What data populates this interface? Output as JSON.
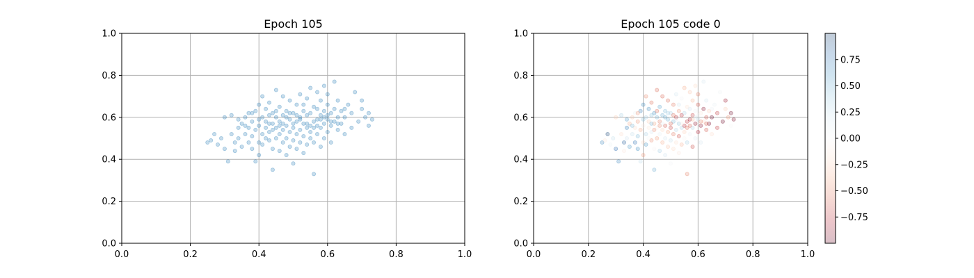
{
  "chart_data": [
    {
      "type": "scatter",
      "title": "Epoch 105",
      "xlim": [
        0.0,
        1.0
      ],
      "ylim": [
        0.0,
        1.0
      ],
      "x_ticks": [
        "0.0",
        "0.2",
        "0.4",
        "0.6",
        "0.8",
        "1.0"
      ],
      "y_ticks": [
        "0.0",
        "0.2",
        "0.4",
        "0.6",
        "0.8",
        "1.0"
      ],
      "grid": true,
      "point_color": "#1f77b4",
      "point_alpha": 0.25,
      "points": [
        [
          0.25,
          0.48
        ],
        [
          0.26,
          0.49
        ],
        [
          0.27,
          0.52
        ],
        [
          0.28,
          0.47
        ],
        [
          0.29,
          0.5
        ],
        [
          0.3,
          0.45
        ],
        [
          0.3,
          0.6
        ],
        [
          0.31,
          0.39
        ],
        [
          0.32,
          0.61
        ],
        [
          0.32,
          0.52
        ],
        [
          0.33,
          0.48
        ],
        [
          0.33,
          0.44
        ],
        [
          0.34,
          0.5
        ],
        [
          0.34,
          0.55
        ],
        [
          0.35,
          0.57
        ],
        [
          0.35,
          0.46
        ],
        [
          0.36,
          0.52
        ],
        [
          0.36,
          0.6
        ],
        [
          0.37,
          0.48
        ],
        [
          0.37,
          0.55
        ],
        [
          0.37,
          0.62
        ],
        [
          0.38,
          0.45
        ],
        [
          0.38,
          0.58
        ],
        [
          0.38,
          0.51
        ],
        [
          0.39,
          0.39
        ],
        [
          0.39,
          0.54
        ],
        [
          0.39,
          0.63
        ],
        [
          0.4,
          0.48
        ],
        [
          0.4,
          0.56
        ],
        [
          0.4,
          0.66
        ],
        [
          0.4,
          0.42
        ],
        [
          0.41,
          0.52
        ],
        [
          0.41,
          0.6
        ],
        [
          0.41,
          0.7
        ],
        [
          0.41,
          0.47
        ],
        [
          0.42,
          0.55
        ],
        [
          0.42,
          0.58
        ],
        [
          0.42,
          0.64
        ],
        [
          0.43,
          0.49
        ],
        [
          0.43,
          0.53
        ],
        [
          0.43,
          0.61
        ],
        [
          0.43,
          0.67
        ],
        [
          0.44,
          0.35
        ],
        [
          0.44,
          0.45
        ],
        [
          0.44,
          0.57
        ],
        [
          0.44,
          0.62
        ],
        [
          0.45,
          0.5
        ],
        [
          0.45,
          0.55
        ],
        [
          0.45,
          0.6
        ],
        [
          0.45,
          0.73
        ],
        [
          0.46,
          0.44
        ],
        [
          0.46,
          0.52
        ],
        [
          0.46,
          0.58
        ],
        [
          0.46,
          0.65
        ],
        [
          0.47,
          0.48
        ],
        [
          0.47,
          0.54
        ],
        [
          0.47,
          0.61
        ],
        [
          0.47,
          0.7
        ],
        [
          0.48,
          0.42
        ],
        [
          0.48,
          0.5
        ],
        [
          0.48,
          0.56
        ],
        [
          0.48,
          0.63
        ],
        [
          0.49,
          0.46
        ],
        [
          0.49,
          0.53
        ],
        [
          0.49,
          0.59
        ],
        [
          0.49,
          0.68
        ],
        [
          0.5,
          0.38
        ],
        [
          0.5,
          0.49
        ],
        [
          0.5,
          0.55
        ],
        [
          0.5,
          0.62
        ],
        [
          0.51,
          0.45
        ],
        [
          0.51,
          0.52
        ],
        [
          0.51,
          0.58
        ],
        [
          0.51,
          0.66
        ],
        [
          0.52,
          0.48
        ],
        [
          0.52,
          0.54
        ],
        [
          0.52,
          0.6
        ],
        [
          0.52,
          0.71
        ],
        [
          0.53,
          0.43
        ],
        [
          0.53,
          0.51
        ],
        [
          0.53,
          0.57
        ],
        [
          0.53,
          0.63
        ],
        [
          0.54,
          0.47
        ],
        [
          0.54,
          0.55
        ],
        [
          0.54,
          0.61
        ],
        [
          0.54,
          0.69
        ],
        [
          0.55,
          0.5
        ],
        [
          0.55,
          0.56
        ],
        [
          0.55,
          0.62
        ],
        [
          0.55,
          0.74
        ],
        [
          0.56,
          0.33
        ],
        [
          0.56,
          0.48
        ],
        [
          0.56,
          0.58
        ],
        [
          0.56,
          0.65
        ],
        [
          0.57,
          0.52
        ],
        [
          0.57,
          0.59
        ],
        [
          0.57,
          0.64
        ],
        [
          0.57,
          0.72
        ],
        [
          0.58,
          0.46
        ],
        [
          0.58,
          0.55
        ],
        [
          0.58,
          0.61
        ],
        [
          0.58,
          0.68
        ],
        [
          0.59,
          0.5
        ],
        [
          0.59,
          0.57
        ],
        [
          0.59,
          0.63
        ],
        [
          0.59,
          0.75
        ],
        [
          0.6,
          0.53
        ],
        [
          0.6,
          0.59
        ],
        [
          0.6,
          0.66
        ],
        [
          0.6,
          0.71
        ],
        [
          0.61,
          0.48
        ],
        [
          0.61,
          0.56
        ],
        [
          0.61,
          0.62
        ],
        [
          0.62,
          0.58
        ],
        [
          0.62,
          0.64
        ],
        [
          0.62,
          0.77
        ],
        [
          0.63,
          0.54
        ],
        [
          0.63,
          0.6
        ],
        [
          0.63,
          0.68
        ],
        [
          0.64,
          0.57
        ],
        [
          0.64,
          0.63
        ],
        [
          0.65,
          0.52
        ],
        [
          0.65,
          0.6
        ],
        [
          0.66,
          0.66
        ],
        [
          0.67,
          0.55
        ],
        [
          0.67,
          0.62
        ],
        [
          0.68,
          0.72
        ],
        [
          0.69,
          0.58
        ],
        [
          0.7,
          0.64
        ],
        [
          0.71,
          0.6
        ],
        [
          0.72,
          0.62
        ],
        [
          0.72,
          0.56
        ],
        [
          0.73,
          0.59
        ],
        [
          0.7,
          0.68
        ],
        [
          0.46,
          0.56
        ],
        [
          0.48,
          0.6
        ],
        [
          0.5,
          0.57
        ],
        [
          0.52,
          0.59
        ],
        [
          0.54,
          0.57
        ],
        [
          0.44,
          0.54
        ],
        [
          0.42,
          0.5
        ],
        [
          0.56,
          0.55
        ],
        [
          0.58,
          0.59
        ],
        [
          0.6,
          0.61
        ],
        [
          0.4,
          0.59
        ],
        [
          0.38,
          0.62
        ],
        [
          0.36,
          0.56
        ],
        [
          0.34,
          0.59
        ],
        [
          0.53,
          0.66
        ],
        [
          0.55,
          0.53
        ],
        [
          0.57,
          0.56
        ],
        [
          0.49,
          0.62
        ],
        [
          0.47,
          0.57
        ],
        [
          0.45,
          0.63
        ],
        [
          0.43,
          0.57
        ],
        [
          0.51,
          0.61
        ],
        [
          0.59,
          0.6
        ],
        [
          0.61,
          0.58
        ],
        [
          0.63,
          0.57
        ],
        [
          0.65,
          0.64
        ]
      ]
    },
    {
      "type": "scatter",
      "title": "Epoch 105 code 0",
      "xlim": [
        0.0,
        1.0
      ],
      "ylim": [
        0.0,
        1.0
      ],
      "x_ticks": [
        "0.0",
        "0.2",
        "0.4",
        "0.6",
        "0.8",
        "1.0"
      ],
      "y_ticks": [
        "0.0",
        "0.2",
        "0.4",
        "0.6",
        "0.8",
        "1.0"
      ],
      "grid": true,
      "point_alpha": 0.25,
      "colormap": "RdBu",
      "color_range": [
        -1.0,
        1.0
      ],
      "colorbar_ticks": [
        "0.75",
        "0.50",
        "0.25",
        "0.00",
        "−0.25",
        "−0.50",
        "−0.75"
      ],
      "colorbar_tick_values": [
        0.75,
        0.5,
        0.25,
        0.0,
        -0.25,
        -0.5,
        -0.75
      ]
    }
  ]
}
